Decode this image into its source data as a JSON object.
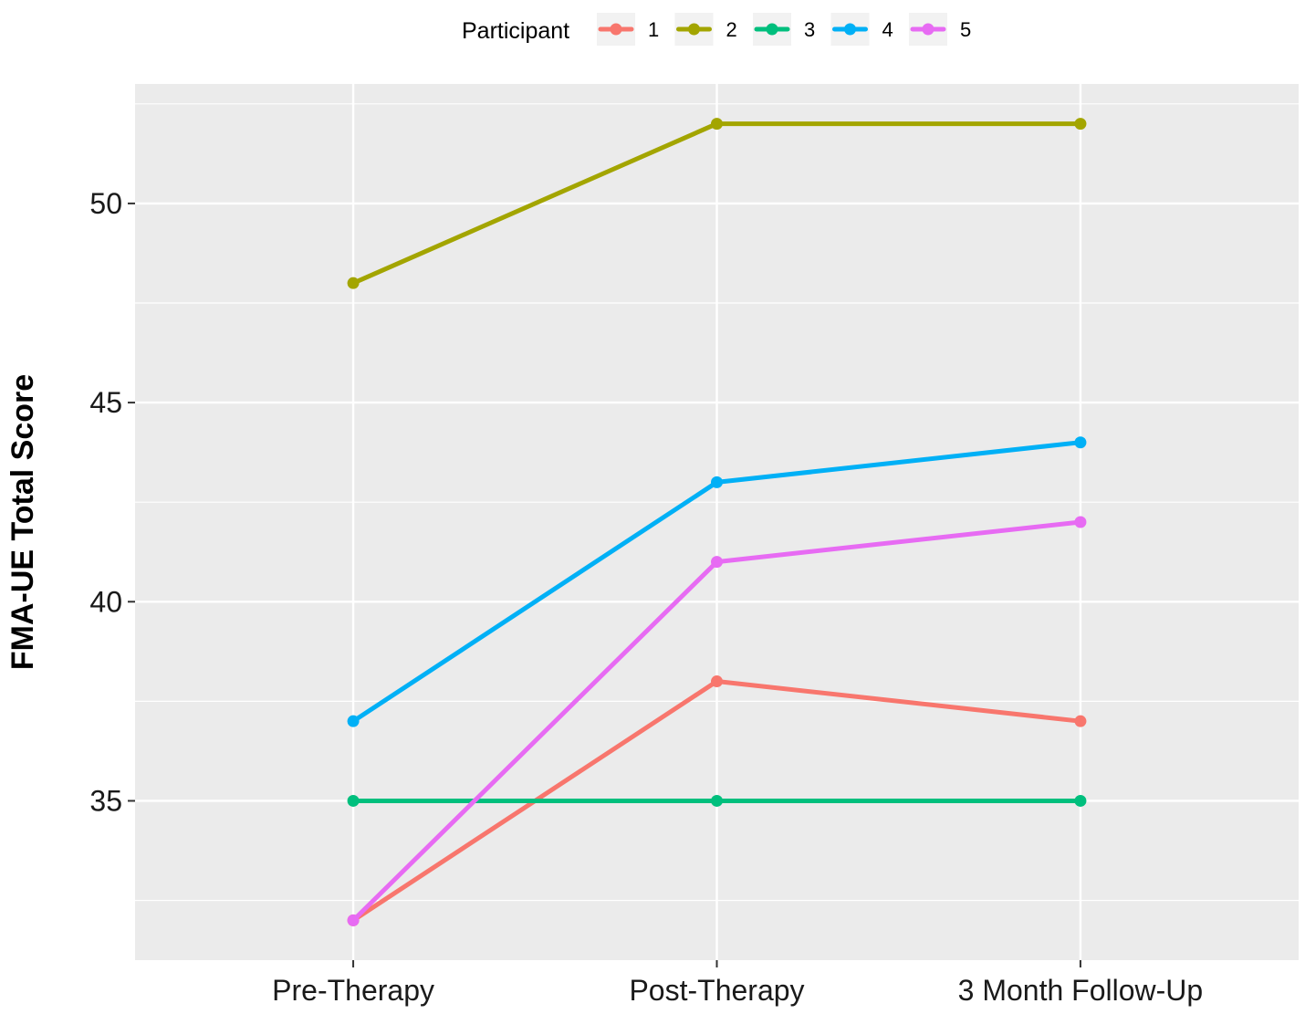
{
  "chart_data": {
    "type": "line",
    "ylabel": "FMA-UE Total Score",
    "xlabel": "",
    "categories": [
      "Pre-Therapy",
      "Post-Therapy",
      "3 Month Follow-Up"
    ],
    "ylim": [
      31,
      53
    ],
    "yticks": [
      35,
      40,
      45,
      50
    ],
    "grid": true,
    "legend": {
      "title": "Participant",
      "placement": "top"
    },
    "series": [
      {
        "name": "1",
        "color": "#F8766D",
        "values": [
          32,
          38,
          37
        ]
      },
      {
        "name": "2",
        "color": "#A3A500",
        "values": [
          48,
          52,
          52
        ]
      },
      {
        "name": "3",
        "color": "#00BF7D",
        "values": [
          35,
          35,
          35
        ]
      },
      {
        "name": "4",
        "color": "#00B0F6",
        "values": [
          37,
          43,
          44
        ]
      },
      {
        "name": "5",
        "color": "#E76BF3",
        "values": [
          32,
          41,
          42
        ]
      }
    ]
  }
}
